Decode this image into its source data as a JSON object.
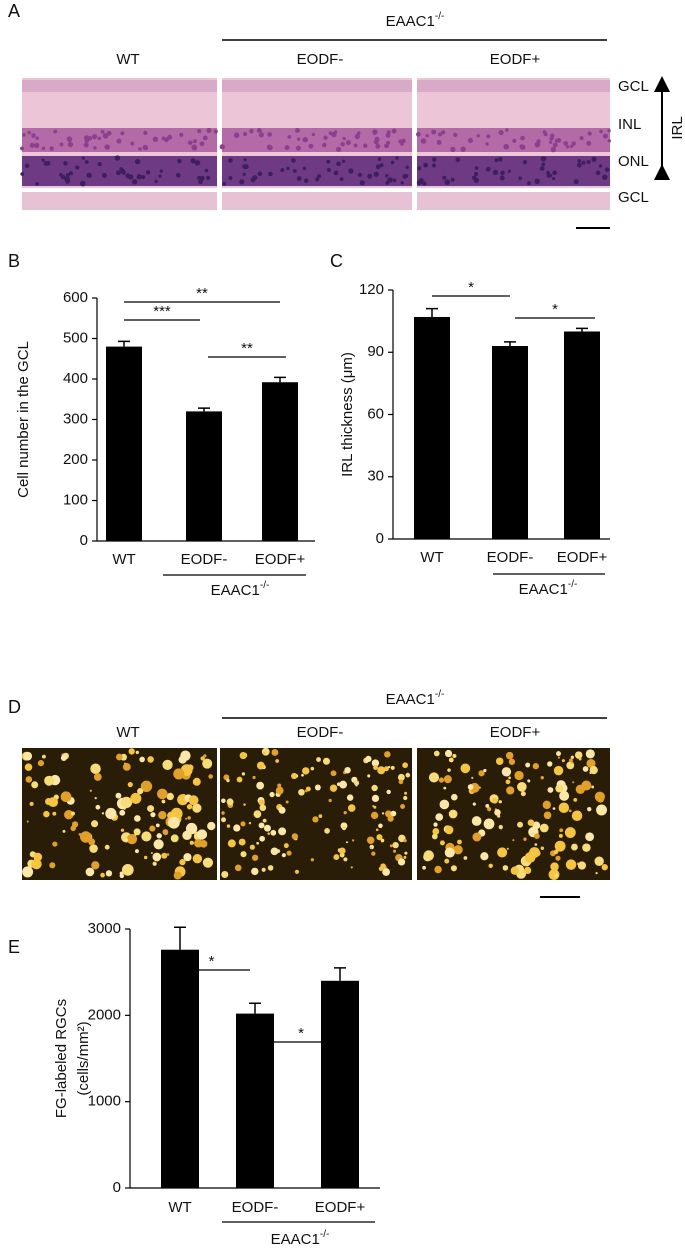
{
  "panel_a": {
    "label": "A",
    "group_label": "EAAC1",
    "group_label_sup": "-/-",
    "columns": [
      "WT",
      "EODF-",
      "EODF+"
    ],
    "layers": [
      "GCL",
      "INL",
      "ONL",
      "GCL"
    ],
    "range_label": "IRL"
  },
  "panel_d": {
    "label": "D",
    "group_label": "EAAC1",
    "group_label_sup": "-/-",
    "columns": [
      "WT",
      "EODF-",
      "EODF+"
    ]
  },
  "chart_data": [
    {
      "type": "bar",
      "panel_label": "B",
      "ylabel": [
        "Cell number in the GCL"
      ],
      "categories": [
        "WT",
        "EODF-",
        "EODF+"
      ],
      "values": [
        480,
        320,
        392
      ],
      "errors": [
        13,
        8,
        12
      ],
      "color": "#000000",
      "ylim": [
        0,
        600
      ],
      "yticks": [
        0,
        100,
        200,
        300,
        400,
        500,
        600
      ],
      "group_label": "EAAC1",
      "group_label_sup": "-/-",
      "significance": [
        "***",
        "**",
        "**"
      ]
    },
    {
      "type": "bar",
      "panel_label": "C",
      "ylabel": [
        "IRL thickness (μm)"
      ],
      "categories": [
        "WT",
        "EODF-",
        "EODF+"
      ],
      "values": [
        107,
        93,
        100
      ],
      "errors": [
        4,
        2,
        1.5
      ],
      "color": "#000000",
      "ylim": [
        0,
        120
      ],
      "yticks": [
        0,
        30,
        60,
        90,
        120
      ],
      "group_label": "EAAC1",
      "group_label_sup": "-/-",
      "significance": [
        "*",
        "*"
      ]
    },
    {
      "type": "bar",
      "panel_label": "E",
      "ylabel": [
        "FG-labeled RGCs",
        "(cells/mm²)"
      ],
      "categories": [
        "WT",
        "EODF-",
        "EODF+"
      ],
      "values": [
        2760,
        2020,
        2400
      ],
      "errors": [
        260,
        120,
        150
      ],
      "color": "#000000",
      "ylim": [
        0,
        3000
      ],
      "yticks": [
        0,
        1000,
        2000,
        3000
      ],
      "group_label": "EAAC1",
      "group_label_sup": "-/-",
      "significance": [
        "*",
        "*"
      ]
    }
  ]
}
